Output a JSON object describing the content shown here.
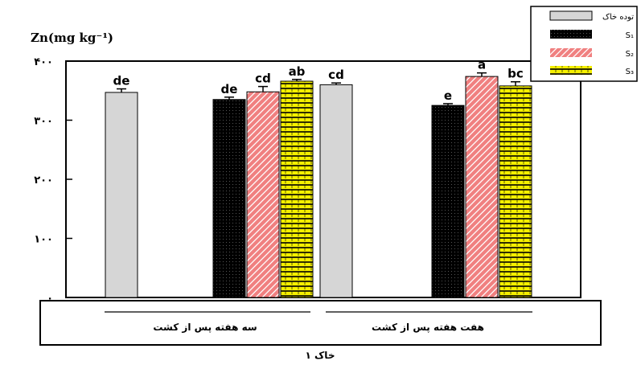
{
  "chart_data": {
    "type": "bar",
    "title": "",
    "ylabel": "Zn(mg kg⁻¹)",
    "xlabel": "خاک ۱",
    "ylim": [
      0,
      400
    ],
    "yticks": [
      {
        "value": 0,
        "label": "۰"
      },
      {
        "value": 100,
        "label": "۱۰۰"
      },
      {
        "value": 200,
        "label": "۲۰۰"
      },
      {
        "value": 300,
        "label": "۳۰۰"
      },
      {
        "value": 400,
        "label": "۴۰۰"
      }
    ],
    "groups": [
      {
        "name": "سه هفته پس از کشت",
        "label_line": true
      },
      {
        "name": "هفت هفته پس از کشت",
        "label_line": true
      }
    ],
    "legend": {
      "position": "top-right",
      "entries": [
        {
          "series": "control",
          "label": "توده خاک",
          "color": "#d6d6d6",
          "pattern": "solid"
        },
        {
          "series": "S1",
          "label": "S₁",
          "color": "#000000",
          "pattern": "dots"
        },
        {
          "series": "S2",
          "label": "S₂",
          "color": "#f08080",
          "pattern": "diagonal"
        },
        {
          "series": "S3",
          "label": "S₃",
          "color": "#f5f000",
          "pattern": "hlines"
        }
      ]
    },
    "bars": [
      {
        "series": "control",
        "value": 347,
        "error": 6,
        "letter": "de"
      },
      {
        "series": "S1",
        "value": 335,
        "error": 4,
        "letter": "de"
      },
      {
        "series": "S2",
        "value": 348,
        "error": 9,
        "letter": "cd"
      },
      {
        "series": "S3",
        "value": 366,
        "error": 3,
        "letter": "ab"
      },
      {
        "series": "control",
        "value": 360,
        "error": 3,
        "letter": "cd"
      },
      {
        "series": "S1",
        "value": 325,
        "error": 3,
        "letter": "e"
      },
      {
        "series": "S2",
        "value": 374,
        "error": 6,
        "letter": "a"
      },
      {
        "series": "S3",
        "value": 358,
        "error": 7,
        "letter": "bc"
      }
    ]
  }
}
